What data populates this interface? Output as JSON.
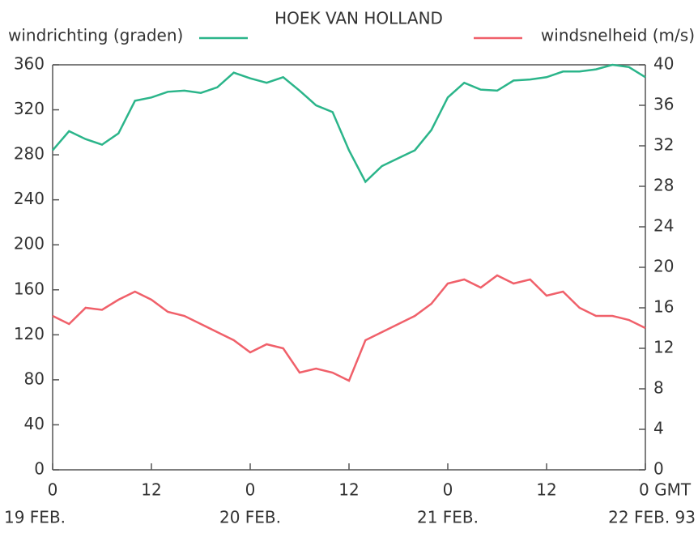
{
  "chart_data": {
    "type": "line",
    "title": "HOEK VAN HOLLAND",
    "x": [
      0,
      2,
      4,
      6,
      8,
      10,
      12,
      14,
      16,
      18,
      20,
      22,
      24,
      26,
      28,
      30,
      32,
      34,
      36,
      38,
      40,
      42,
      44,
      46,
      48,
      50,
      52,
      54,
      56,
      58,
      60,
      62,
      64,
      66,
      68,
      70,
      72
    ],
    "series": [
      {
        "name": "windrichting (graden)",
        "color": "#2bb58a",
        "axis": "y",
        "values": [
          284,
          301,
          294,
          289,
          299,
          328,
          331,
          336,
          337,
          335,
          340,
          353,
          348,
          344,
          349,
          337,
          324,
          318,
          284,
          256,
          270,
          277,
          284,
          302,
          331,
          344,
          338,
          337,
          346,
          347,
          349,
          354,
          354,
          356,
          360,
          358,
          349
        ]
      },
      {
        "name": "windsnelheid (m/s)",
        "color": "#f0606a",
        "axis": "y2",
        "values": [
          15.2,
          14.4,
          16,
          15.8,
          16.8,
          17.6,
          16.8,
          15.6,
          15.2,
          14.4,
          13.6,
          12.8,
          11.6,
          12.4,
          12,
          9.6,
          10,
          9.6,
          8.8,
          12.8,
          13.6,
          14.4,
          15.2,
          16.4,
          18.4,
          18.8,
          18,
          19.2,
          18.4,
          18.8,
          17.2,
          17.6,
          16,
          15.2,
          15.2,
          14.8,
          14
        ]
      }
    ],
    "xlim": [
      0,
      72
    ],
    "xticks": [
      0,
      12,
      {
        "value": 24,
        "label": "0"
      },
      {
        "value": 36,
        "label": "12"
      },
      {
        "value": 48,
        "label": "0"
      },
      {
        "value": 60,
        "label": "12"
      },
      {
        "value": 72,
        "label": "0 GMT"
      }
    ],
    "date_labels": [
      {
        "value": 0,
        "label": "19 FEB."
      },
      {
        "value": 24,
        "label": "20 FEB."
      },
      {
        "value": 48,
        "label": "21 FEB."
      },
      {
        "value": 72,
        "label": "22 FEB. 93"
      }
    ],
    "ylim": [
      0,
      360
    ],
    "yticks": [
      0,
      40,
      80,
      120,
      160,
      200,
      240,
      280,
      320,
      360
    ],
    "y2lim": [
      0,
      40
    ],
    "y2ticks": [
      0,
      4,
      8,
      12,
      16,
      20,
      24,
      28,
      32,
      36,
      40
    ],
    "grid": false
  }
}
